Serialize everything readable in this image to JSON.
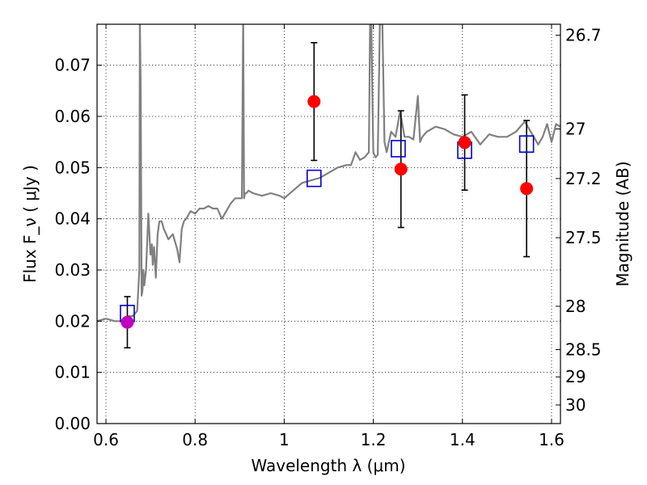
{
  "chart_data": {
    "type": "scatter",
    "xlabel": "Wavelength  λ (μm)",
    "ylabel": "Flux  F_ν  ( μJy )",
    "y2label": "Magnitude (AB)",
    "xlim": [
      0.58,
      1.62
    ],
    "ylim": [
      0.0,
      0.078
    ],
    "grid": true,
    "x_ticks": [
      0.6,
      0.8,
      1.0,
      1.2,
      1.4,
      1.6
    ],
    "x_tick_labels": [
      "0.6",
      "0.8",
      "1",
      "1.2",
      "1.4",
      "1.6"
    ],
    "y_ticks": [
      0.0,
      0.01,
      0.02,
      0.03,
      0.04,
      0.05,
      0.06,
      0.07
    ],
    "y_tick_labels": [
      "0.00",
      "0.01",
      "0.02",
      "0.03",
      "0.04",
      "0.05",
      "0.06",
      "0.07"
    ],
    "mag_ticks": [
      26.7,
      27.0,
      27.2,
      27.5,
      28.0,
      28.5,
      29.0,
      30.0
    ],
    "mag_tick_labels": [
      "26.7",
      "27",
      "27.2",
      "27.5",
      "28",
      "28.5",
      "29",
      "30"
    ],
    "observed_points": [
      {
        "x": 0.648,
        "y": 0.0198,
        "err": 0.005,
        "color": "#bf00bf"
      },
      {
        "x": 1.067,
        "y": 0.0629,
        "err": 0.0115,
        "color": "#ff0000"
      },
      {
        "x": 1.262,
        "y": 0.0497,
        "err": 0.0114,
        "color": "#ff0000"
      },
      {
        "x": 1.405,
        "y": 0.0549,
        "err": 0.0093,
        "color": "#ff0000"
      },
      {
        "x": 1.544,
        "y": 0.0459,
        "err": 0.0133,
        "color": "#ff0000"
      }
    ],
    "model_points": {
      "color": "#0000cc",
      "x": [
        0.648,
        1.067,
        1.256,
        1.405,
        1.544
      ],
      "y": [
        0.0215,
        0.0479,
        0.0537,
        0.0534,
        0.0546
      ]
    },
    "model_spectrum": {
      "color": "#808080",
      "x": [
        0.58,
        0.6,
        0.62,
        0.635,
        0.65,
        0.66,
        0.67,
        0.675,
        0.676,
        0.678,
        0.68,
        0.682,
        0.684,
        0.686,
        0.69,
        0.695,
        0.7,
        0.703,
        0.705,
        0.708,
        0.712,
        0.716,
        0.72,
        0.725,
        0.73,
        0.74,
        0.75,
        0.76,
        0.765,
        0.77,
        0.775,
        0.78,
        0.79,
        0.8,
        0.81,
        0.82,
        0.83,
        0.84,
        0.85,
        0.86,
        0.87,
        0.88,
        0.89,
        0.9,
        0.905,
        0.908,
        0.91,
        0.912,
        0.915,
        0.92,
        0.93,
        0.95,
        0.97,
        0.99,
        1.0,
        1.02,
        1.04,
        1.06,
        1.08,
        1.1,
        1.12,
        1.14,
        1.15,
        1.16,
        1.17,
        1.18,
        1.19,
        1.193,
        1.195,
        1.2,
        1.205,
        1.21,
        1.215,
        1.22,
        1.225,
        1.23,
        1.24,
        1.25,
        1.26,
        1.27,
        1.28,
        1.29,
        1.3,
        1.305,
        1.31,
        1.32,
        1.34,
        1.36,
        1.38,
        1.4,
        1.42,
        1.44,
        1.46,
        1.48,
        1.5,
        1.52,
        1.54,
        1.56,
        1.57,
        1.58,
        1.59,
        1.6,
        1.61,
        1.62
      ],
      "y": [
        0.02,
        0.0205,
        0.02,
        0.02,
        0.021,
        0.021,
        0.022,
        0.03,
        0.08,
        0.065,
        0.025,
        0.026,
        0.03,
        0.027,
        0.03,
        0.041,
        0.033,
        0.035,
        0.031,
        0.0345,
        0.0285,
        0.037,
        0.0395,
        0.0395,
        0.038,
        0.036,
        0.037,
        0.034,
        0.0315,
        0.038,
        0.0395,
        0.04,
        0.0415,
        0.041,
        0.042,
        0.042,
        0.0425,
        0.042,
        0.042,
        0.04,
        0.0415,
        0.043,
        0.044,
        0.044,
        0.044,
        0.08,
        0.044,
        0.045,
        0.045,
        0.0455,
        0.045,
        0.0445,
        0.045,
        0.0445,
        0.044,
        0.0455,
        0.047,
        0.0475,
        0.048,
        0.049,
        0.05,
        0.0505,
        0.0505,
        0.053,
        0.0515,
        0.052,
        0.053,
        0.08,
        0.08,
        0.053,
        0.052,
        0.0525,
        0.08,
        0.08,
        0.055,
        0.053,
        0.057,
        0.056,
        0.061,
        0.056,
        0.056,
        0.0555,
        0.064,
        0.055,
        0.056,
        0.057,
        0.058,
        0.0575,
        0.0565,
        0.056,
        0.057,
        0.0545,
        0.0565,
        0.056,
        0.056,
        0.057,
        0.059,
        0.056,
        0.0545,
        0.056,
        0.0585,
        0.055,
        0.0585,
        0.058
      ]
    }
  }
}
